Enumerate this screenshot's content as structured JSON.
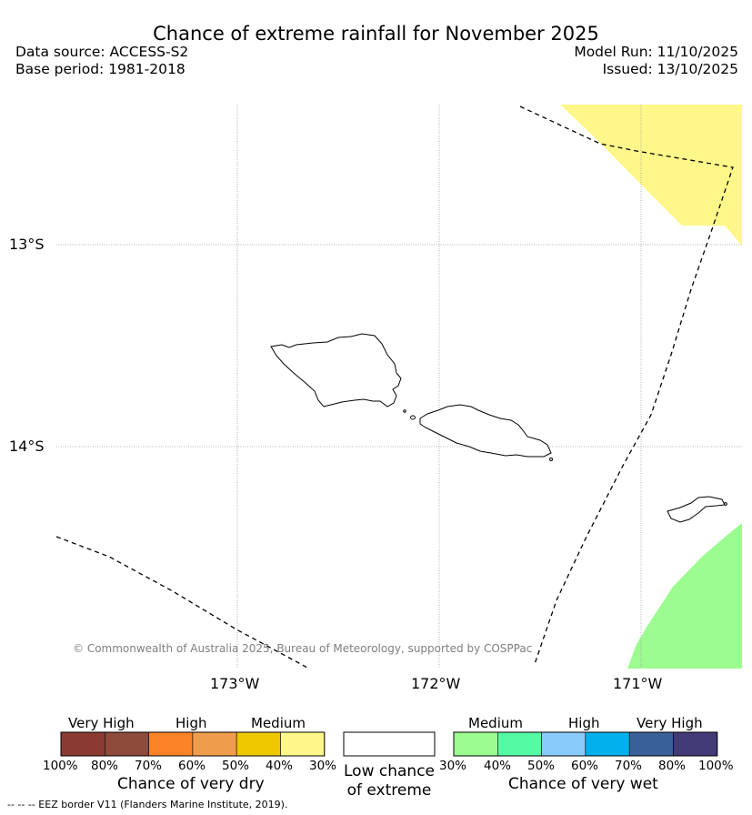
{
  "title": "Chance of extreme rainfall for November 2025",
  "meta": {
    "data_source": "Data source: ACCESS-S2",
    "base_period": "Base period: 1981-2018",
    "model_run": "Model Run: 11/10/2025",
    "issued": "Issued: 13/10/2025"
  },
  "map": {
    "lat_labels": [
      "13°S",
      "14°S"
    ],
    "lon_labels": [
      "173°W",
      "172°W",
      "171°W"
    ],
    "copyright": "© Commonwealth of Australia 2025, Bureau of Meteorology, supported by COSPPac"
  },
  "legend": {
    "dry": {
      "headers": [
        "Very High",
        "High",
        "Medium"
      ],
      "ticks": [
        "100%",
        "80%",
        "70%",
        "60%",
        "50%",
        "40%",
        "30%"
      ],
      "title": "Chance of very dry",
      "colors": [
        "#8b3a32",
        "#8e4a3b",
        "#fd8328",
        "#ef9c4d",
        "#efc800",
        "#fff78a"
      ]
    },
    "low": {
      "label": "Low chance of extreme",
      "color": "#ffffff"
    },
    "wet": {
      "headers": [
        "Medium",
        "High",
        "Very High"
      ],
      "ticks": [
        "30%",
        "40%",
        "50%",
        "60%",
        "70%",
        "80%",
        "100%"
      ],
      "title": "Chance of very wet",
      "colors": [
        "#9cfc90",
        "#55fba4",
        "#89cbfa",
        "#00b0ed",
        "#3a609a",
        "#433a78"
      ]
    }
  },
  "eez_note": "--  --  -- EEZ border V11 (Flanders Marine Institute, 2019)."
}
